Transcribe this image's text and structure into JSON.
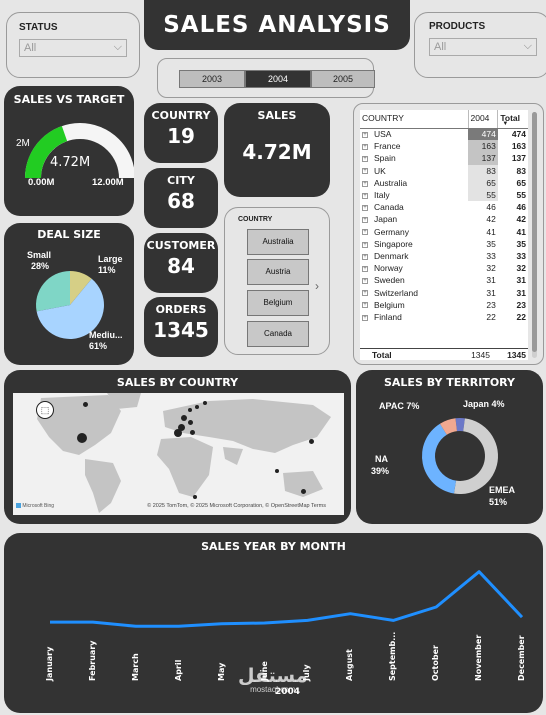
{
  "header": {
    "title": "SALES ANALYSIS"
  },
  "status_slicer": {
    "label": "STATUS",
    "value": "All"
  },
  "products_slicer": {
    "label": "PRODUCTS",
    "value": "All"
  },
  "years": [
    {
      "label": "2003",
      "selected": false
    },
    {
      "label": "2004",
      "selected": true
    },
    {
      "label": "2005",
      "selected": false
    }
  ],
  "sales_vs_target": {
    "title": "SALES VS TARGET",
    "value": "4.72M",
    "target_label": "2M",
    "min": "0.00M",
    "max": "12.00M",
    "fill_fraction": 0.393,
    "color": "#22cc22"
  },
  "cards": {
    "country": {
      "title": "COUNTRY",
      "value": "19"
    },
    "city": {
      "title": "CITY",
      "value": "68"
    },
    "customer": {
      "title": "CUSTOMER",
      "value": "84"
    },
    "orders": {
      "title": "ORDERS",
      "value": "1345"
    },
    "sales": {
      "title": "SALES",
      "value": "4.72M"
    }
  },
  "deal_size": {
    "title": "DEAL SIZE",
    "slices": [
      {
        "name": "Small",
        "pct": "28%",
        "value": 28,
        "color": "#7fd6c6"
      },
      {
        "name": "Large",
        "pct": "11%",
        "value": 11,
        "color": "#d6cf86"
      },
      {
        "name": "Mediu...",
        "pct": "61%",
        "value": 61,
        "color": "#a8d4ff"
      }
    ]
  },
  "country_slicer": {
    "label": "COUNTRY",
    "items": [
      "Australia",
      "Austria",
      "Belgium",
      "Canada"
    ]
  },
  "matrix": {
    "headers": [
      "COUNTRY",
      "2004",
      "Total"
    ],
    "rows": [
      {
        "country": "USA",
        "v2004": "474",
        "total": "474"
      },
      {
        "country": "France",
        "v2004": "163",
        "total": "163"
      },
      {
        "country": "Spain",
        "v2004": "137",
        "total": "137"
      },
      {
        "country": "UK",
        "v2004": "83",
        "total": "83"
      },
      {
        "country": "Australia",
        "v2004": "65",
        "total": "65"
      },
      {
        "country": "Italy",
        "v2004": "55",
        "total": "55"
      },
      {
        "country": "Canada",
        "v2004": "46",
        "total": "46"
      },
      {
        "country": "Japan",
        "v2004": "42",
        "total": "42"
      },
      {
        "country": "Germany",
        "v2004": "41",
        "total": "41"
      },
      {
        "country": "Singapore",
        "v2004": "35",
        "total": "35"
      },
      {
        "country": "Denmark",
        "v2004": "33",
        "total": "33"
      },
      {
        "country": "Norway",
        "v2004": "32",
        "total": "32"
      },
      {
        "country": "Sweden",
        "v2004": "31",
        "total": "31"
      },
      {
        "country": "Switzerland",
        "v2004": "31",
        "total": "31"
      },
      {
        "country": "Belgium",
        "v2004": "23",
        "total": "23"
      },
      {
        "country": "Finland",
        "v2004": "22",
        "total": "22"
      }
    ],
    "total": {
      "label": "Total",
      "v2004": "1345",
      "total": "1345"
    }
  },
  "sales_by_country": {
    "title": "SALES BY COUNTRY",
    "attribution": "© 2025 TomTom, © 2025 Microsoft Corporation, © OpenStreetMap Terms",
    "bing": "Microsoft Bing"
  },
  "sales_by_territory": {
    "title": "SALES BY TERRITORY",
    "slices": [
      {
        "name": "Japan",
        "pct": "4%",
        "value": 4,
        "color": "#6b78c8"
      },
      {
        "name": "EMEA",
        "pct": "51%",
        "value": 51,
        "color": "#cfcfcf"
      },
      {
        "name": "NA",
        "pct": "39%",
        "value": 39,
        "color": "#6db3ff"
      },
      {
        "name": "APAC",
        "pct": "7%",
        "value": 7,
        "color": "#f0a890"
      }
    ]
  },
  "chart_data": {
    "type": "line",
    "title": "SALES YEAR BY MONTH",
    "categories": [
      "January",
      "February",
      "March",
      "April",
      "May",
      "June",
      "July",
      "August",
      "Septemb...",
      "October",
      "November",
      "December"
    ],
    "values": [
      0.32,
      0.32,
      0.27,
      0.27,
      0.3,
      0.31,
      0.34,
      0.42,
      0.34,
      0.5,
      0.92,
      0.38
    ],
    "ylim": [
      0,
      1
    ],
    "xlabel": "2004",
    "ylabel": "",
    "color": "#1f8fff",
    "grid": false
  },
  "watermark": {
    "arabic": "مستقل",
    "latin": "mostaql.com"
  }
}
